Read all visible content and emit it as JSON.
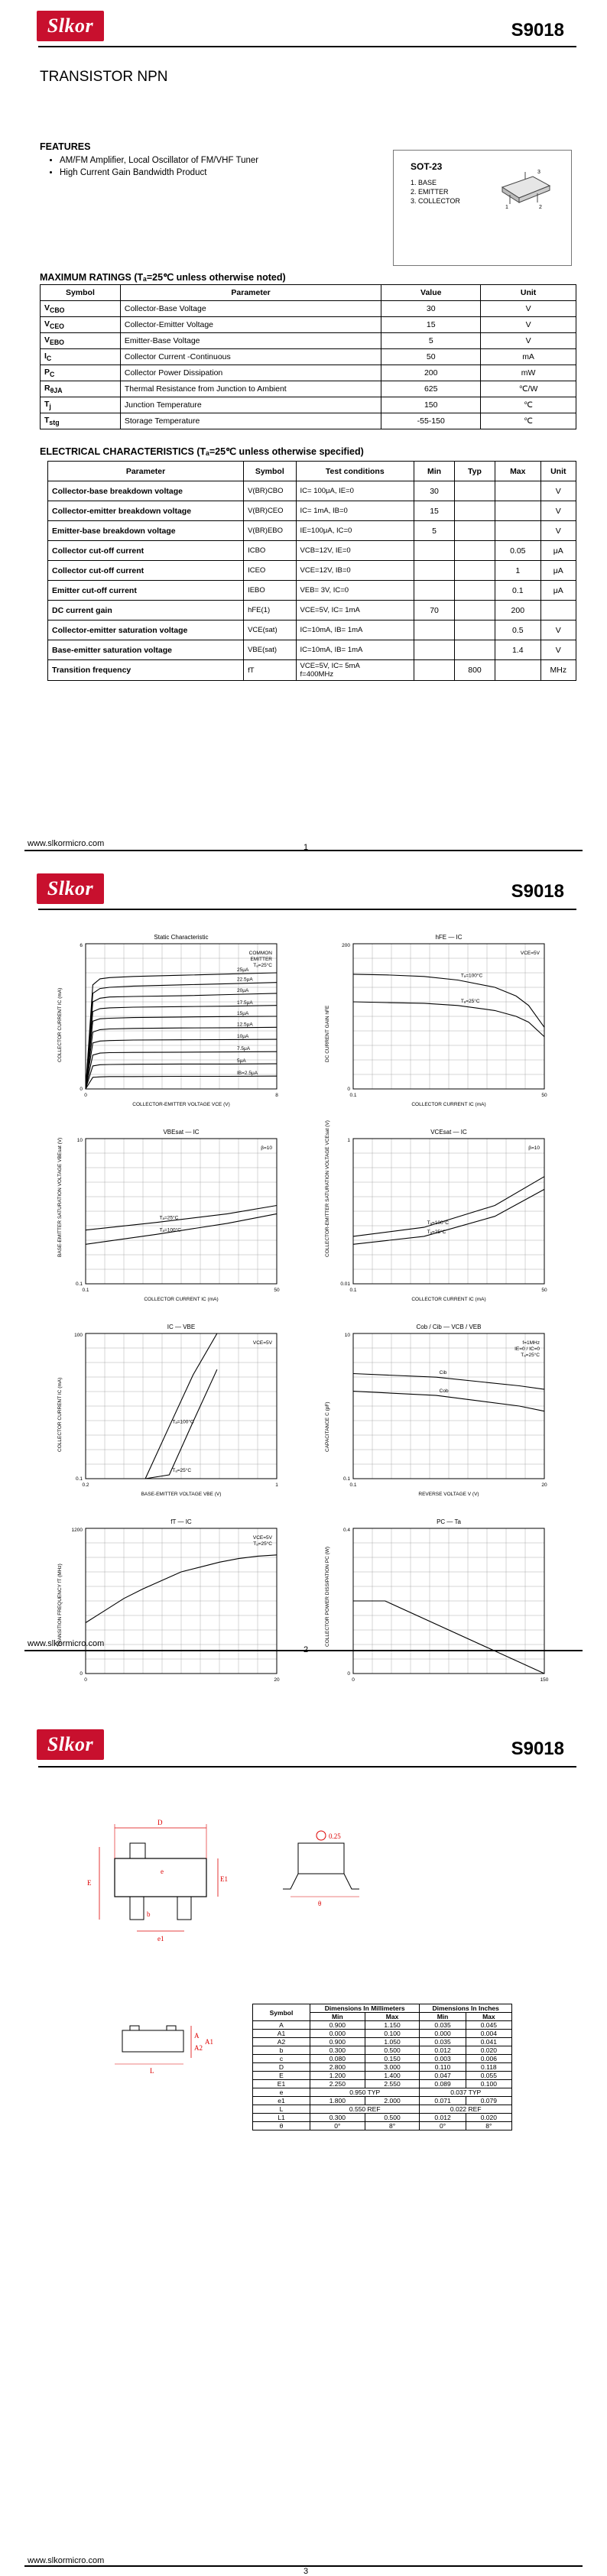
{
  "brand": "Slkor",
  "part_number": "S9018",
  "page1": {
    "title": "TRANSISTOR NPN",
    "features_heading": "FEATURES",
    "features": [
      "AM/FM Amplifier, Local Oscillator of FM/VHF Tuner",
      "High Current Gain Bandwidth Product"
    ],
    "package": {
      "name": "SOT-23",
      "pins": [
        "1. BASE",
        "2. EMITTER",
        "3. COLLECTOR"
      ]
    },
    "max_heading": "MAXIMUM RATINGS (Tₐ=25℃ unless otherwise noted)",
    "max_headers": [
      "Symbol",
      "Parameter",
      "Value",
      "Unit"
    ],
    "max_rows": [
      {
        "sym": "V",
        "sub": "CBO",
        "param": "Collector-Base Voltage",
        "value": "30",
        "unit": "V"
      },
      {
        "sym": "V",
        "sub": "CEO",
        "param": "Collector-Emitter Voltage",
        "value": "15",
        "unit": "V"
      },
      {
        "sym": "V",
        "sub": "EBO",
        "param": "Emitter-Base Voltage",
        "value": "5",
        "unit": "V"
      },
      {
        "sym": "I",
        "sub": "C",
        "param": "Collector Current -Continuous",
        "value": "50",
        "unit": "mA"
      },
      {
        "sym": "P",
        "sub": "C",
        "param": "Collector Power Dissipation",
        "value": "200",
        "unit": "mW"
      },
      {
        "sym": "R",
        "sub": "θJA",
        "param": "Thermal Resistance from Junction to Ambient",
        "value": "625",
        "unit": "℃/W"
      },
      {
        "sym": "T",
        "sub": "j",
        "param": "Junction Temperature",
        "value": "150",
        "unit": "℃"
      },
      {
        "sym": "T",
        "sub": "stg",
        "param": "Storage Temperature",
        "value": "-55-150",
        "unit": "℃"
      }
    ],
    "elec_heading": "ELECTRICAL CHARACTERISTICS (Tₐ=25℃ unless otherwise specified)",
    "elec_headers": [
      "Parameter",
      "Symbol",
      "Test  conditions",
      "Min",
      "Typ",
      "Max",
      "Unit"
    ],
    "elec_rows": [
      {
        "param": "Collector-base breakdown voltage",
        "sym": "V(BR)CBO",
        "cond": "IC= 100μA, IE=0",
        "min": "30",
        "typ": "",
        "max": "",
        "unit": "V"
      },
      {
        "param": "Collector-emitter breakdown voltage",
        "sym": "V(BR)CEO",
        "cond": "IC= 1mA, IB=0",
        "min": "15",
        "typ": "",
        "max": "",
        "unit": "V"
      },
      {
        "param": "Emitter-base breakdown voltage",
        "sym": "V(BR)EBO",
        "cond": "IE=100μA, IC=0",
        "min": "5",
        "typ": "",
        "max": "",
        "unit": "V"
      },
      {
        "param": "Collector cut-off current",
        "sym": "ICBO",
        "cond": "VCB=12V, IE=0",
        "min": "",
        "typ": "",
        "max": "0.05",
        "unit": "μA"
      },
      {
        "param": "Collector cut-off current",
        "sym": "ICEO",
        "cond": "VCE=12V, IB=0",
        "min": "",
        "typ": "",
        "max": "1",
        "unit": "μA"
      },
      {
        "param": "Emitter cut-off current",
        "sym": "IEBO",
        "cond": "VEB= 3V, IC=0",
        "min": "",
        "typ": "",
        "max": "0.1",
        "unit": "μA"
      },
      {
        "param": "DC current gain",
        "sym": "hFE(1)",
        "cond": "VCE=5V, IC= 1mA",
        "min": "70",
        "typ": "",
        "max": "200",
        "unit": ""
      },
      {
        "param": "Collector-emitter saturation voltage",
        "sym": "VCE(sat)",
        "cond": "IC=10mA, IB= 1mA",
        "min": "",
        "typ": "",
        "max": "0.5",
        "unit": "V"
      },
      {
        "param": "Base-emitter saturation voltage",
        "sym": "VBE(sat)",
        "cond": "IC=10mA, IB= 1mA",
        "min": "",
        "typ": "",
        "max": "1.4",
        "unit": "V"
      },
      {
        "param": "Transition frequency",
        "sym": "fT",
        "cond": "VCE=5V, IC= 5mA\nf=400MHz",
        "min": "",
        "typ": "800",
        "max": "",
        "unit": "MHz"
      }
    ],
    "footer_url": "www.slkormicro.com",
    "page_no": "1"
  },
  "page2": {
    "graph_titles": [
      "Static Characteristic",
      "hFE — IC",
      "VBEsat — IC",
      "VCEsat — IC",
      "IC — VBE",
      "Cob / Cib — VCB / VEB",
      "fT — IC",
      "PC — Ta"
    ],
    "static_legend": [
      "COMMON",
      "EMITTER",
      "Tₐ=25°C"
    ],
    "static_curves": [
      "25μA",
      "22.5μA",
      "20μA",
      "17.5μA",
      "15μA",
      "12.5μA",
      "10μA",
      "7.5μA",
      "5μA",
      "IB=2.5μA"
    ],
    "static_x_label": "COLLECTOR-EMITTER VOLTAGE  VCE (V)",
    "static_y_label": "COLLECTOR CURRENT  IC (mA)",
    "hfe_note": "VCE=5V",
    "hfe_curves": [
      "Tₐ=100°C",
      "Tₐ=25°C"
    ],
    "hfe_x_label": "COLLECTOR CURRENT  IC (mA)",
    "hfe_y_label": "DC CURRENT GAIN  hFE",
    "vbe_note": "β=10",
    "vbe_curves": [
      "Tₐ=25°C",
      "Tₐ=100°C"
    ],
    "vbe_x_label": "COLLECTOR CURRENT  IC (mA)",
    "vbe_y_label": "BASE-EMITTER SATURATION VOLTAGE  VBEsat (V)",
    "vce_note": "β=10",
    "vce_curves": [
      "Tₐ=100°C",
      "Tₐ=25°C"
    ],
    "vce_x_label": "COLLECTOR CURRENT  IC (mA)",
    "vce_y_label": "COLLECTOR-EMITTER SATURATION VOLTAGE  VCEsat (V)",
    "ic_note": "VCE=5V",
    "ic_curves": [
      "Tₐ=100°C",
      "Tₐ=25°C"
    ],
    "ic_x_label": "BASE-EMITTER VOLTAGE  VBE (V)",
    "ic_y_label": "COLLECTOR CURRENT  IC (mA)",
    "cob_note": [
      "f=1MHz",
      "IE=0 / IC=0",
      "Tₐ=25°C"
    ],
    "cob_curves": [
      "Cib",
      "Cob"
    ],
    "cob_x_label": "REVERSE VOLTAGE  V  (V)",
    "cob_y_label": "CAPACITANCE  C  (pF)",
    "ft_note": [
      "VCE=5V",
      "Tₐ=25°C"
    ],
    "ft_x_label": "COLLECTOR CURRENT  IC (mA)",
    "ft_y_label": "TRANSITION FREQUENCY  fT (MHz)",
    "pc_x_label": "AMBIENT TEMPERATURE  Ta (°C)",
    "pc_y_label": "COLLECTOR POWER DISSIPATION  PC (W)",
    "footer_url": "www.slkormicro.com",
    "page_no": "2"
  },
  "page3": {
    "dim_headers": [
      "Symbol",
      "Dimensions In Millimeters",
      "Dimensions In Inches"
    ],
    "dim_sub": [
      "Min",
      "Max",
      "Min",
      "Max"
    ],
    "dim_rows": [
      [
        "A",
        "0.900",
        "1.150",
        "0.035",
        "0.045"
      ],
      [
        "A1",
        "0.000",
        "0.100",
        "0.000",
        "0.004"
      ],
      [
        "A2",
        "0.900",
        "1.050",
        "0.035",
        "0.041"
      ],
      [
        "b",
        "0.300",
        "0.500",
        "0.012",
        "0.020"
      ],
      [
        "c",
        "0.080",
        "0.150",
        "0.003",
        "0.006"
      ],
      [
        "D",
        "2.800",
        "3.000",
        "0.110",
        "0.118"
      ],
      [
        "E",
        "1.200",
        "1.400",
        "0.047",
        "0.055"
      ],
      [
        "E1",
        "2.250",
        "2.550",
        "0.089",
        "0.100"
      ],
      [
        "e",
        "0.950 TYP",
        "",
        "0.037 TYP",
        ""
      ],
      [
        "e1",
        "1.800",
        "2.000",
        "0.071",
        "0.079"
      ],
      [
        "L",
        "0.550 REF",
        "",
        "0.022 REF",
        ""
      ],
      [
        "L1",
        "0.300",
        "0.500",
        "0.012",
        "0.020"
      ],
      [
        "θ",
        "0°",
        "8°",
        "0°",
        "8°"
      ]
    ],
    "pkg_labels": [
      "D",
      "b",
      "e",
      "e1",
      "E1",
      "E",
      "θ",
      "0.25",
      "A",
      "A1",
      "A2",
      "c",
      "L",
      "L1"
    ],
    "footer_url": "www.slkormicro.com",
    "page_no": "3"
  },
  "chart_data": [
    {
      "type": "line",
      "title": "Static Characteristic",
      "xlabel": "COLLECTOR-EMITTER VOLTAGE  VCE (V)",
      "ylabel": "COLLECTOR CURRENT  IC (mA)",
      "xlim": [
        0,
        8
      ],
      "ylim": [
        0,
        6
      ],
      "x": [
        0,
        0.3,
        0.6,
        1,
        2,
        4,
        6,
        8
      ],
      "series": [
        {
          "name": "25μA",
          "values": [
            0,
            4.3,
            4.55,
            4.6,
            4.65,
            4.7,
            4.75,
            4.8
          ]
        },
        {
          "name": "22.5μA",
          "values": [
            0,
            3.95,
            4.15,
            4.2,
            4.25,
            4.3,
            4.35,
            4.4
          ]
        },
        {
          "name": "20μA",
          "values": [
            0,
            3.6,
            3.75,
            3.8,
            3.82,
            3.85,
            3.9,
            3.95
          ]
        },
        {
          "name": "17.5μA",
          "values": [
            0,
            3.2,
            3.32,
            3.35,
            3.38,
            3.4,
            3.42,
            3.45
          ]
        },
        {
          "name": "15μA",
          "values": [
            0,
            2.8,
            2.9,
            2.92,
            2.95,
            2.97,
            2.99,
            3.0
          ]
        },
        {
          "name": "12.5μA",
          "values": [
            0,
            2.35,
            2.45,
            2.48,
            2.5,
            2.52,
            2.53,
            2.55
          ]
        },
        {
          "name": "10μA",
          "values": [
            0,
            1.9,
            1.98,
            2.0,
            2.02,
            2.03,
            2.04,
            2.05
          ]
        },
        {
          "name": "7.5μA",
          "values": [
            0,
            1.4,
            1.48,
            1.5,
            1.51,
            1.52,
            1.53,
            1.54
          ]
        },
        {
          "name": "5μA",
          "values": [
            0,
            0.95,
            1.0,
            1.01,
            1.02,
            1.03,
            1.03,
            1.04
          ]
        },
        {
          "name": "IB=2.5μA",
          "values": [
            0,
            0.48,
            0.5,
            0.51,
            0.51,
            0.52,
            0.52,
            0.53
          ]
        }
      ]
    },
    {
      "type": "line",
      "title": "hFE — IC",
      "xlabel": "COLLECTOR CURRENT  IC (mA)",
      "ylabel": "DC CURRENT GAIN  hFE",
      "xlim": [
        0.1,
        50
      ],
      "ylim": [
        0,
        200
      ],
      "log_x": true,
      "x": [
        0.1,
        0.3,
        1,
        3,
        10,
        20,
        30,
        50
      ],
      "series": [
        {
          "name": "Tₐ=100°C",
          "values": [
            158,
            157,
            155,
            150,
            140,
            128,
            115,
            85
          ]
        },
        {
          "name": "Tₐ=25°C",
          "values": [
            120,
            119,
            118,
            115,
            108,
            100,
            92,
            72
          ]
        }
      ]
    },
    {
      "type": "line",
      "title": "VBEsat — IC",
      "xlabel": "COLLECTOR CURRENT  IC (mA)",
      "ylabel": "VBEsat (V)",
      "xlim": [
        0.1,
        50
      ],
      "ylim": [
        0.1,
        10
      ],
      "log_x": true,
      "log_y": true,
      "x": [
        0.1,
        1,
        10,
        50
      ],
      "series": [
        {
          "name": "Tₐ=25°C",
          "values": [
            0.55,
            0.7,
            0.92,
            1.2
          ]
        },
        {
          "name": "Tₐ=100°C",
          "values": [
            0.35,
            0.48,
            0.68,
            0.92
          ]
        }
      ]
    },
    {
      "type": "line",
      "title": "VCEsat — IC",
      "xlabel": "COLLECTOR CURRENT  IC (mA)",
      "ylabel": "VCEsat (V)",
      "xlim": [
        0.1,
        50
      ],
      "ylim": [
        0.01,
        1
      ],
      "log_x": true,
      "log_y": true,
      "x": [
        0.1,
        1,
        10,
        50
      ],
      "series": [
        {
          "name": "Tₐ=100°C",
          "values": [
            0.045,
            0.06,
            0.12,
            0.3
          ]
        },
        {
          "name": "Tₐ=25°C",
          "values": [
            0.035,
            0.045,
            0.085,
            0.2
          ]
        }
      ]
    },
    {
      "type": "line",
      "title": "IC — VBE",
      "xlabel": "BASE-EMITTER VOLTAGE  VBE (V)",
      "ylabel": "COLLECTOR CURRENT  IC (mA)",
      "xlim": [
        0.2,
        1.0
      ],
      "ylim": [
        0.1,
        100
      ],
      "log_y": true,
      "x": [
        0.45,
        0.55,
        0.65,
        0.75
      ],
      "series": [
        {
          "name": "Tₐ=100°C",
          "values": [
            0.1,
            1.2,
            14,
            100
          ]
        },
        {
          "name": "Tₐ=25°C",
          "values": [
            0.1,
            0.12,
            1.5,
            18
          ]
        }
      ]
    },
    {
      "type": "line",
      "title": "Cob / Cib — VCB / VEB",
      "xlabel": "REVERSE VOLTAGE  V  (V)",
      "ylabel": "CAPACITANCE  C  (pF)",
      "xlim": [
        0.1,
        20
      ],
      "ylim": [
        0.1,
        10
      ],
      "log_x": true,
      "log_y": true,
      "x": [
        0.1,
        1,
        10,
        20
      ],
      "series": [
        {
          "name": "Cib",
          "values": [
            2.8,
            2.5,
            1.9,
            1.7
          ]
        },
        {
          "name": "Cob",
          "values": [
            1.6,
            1.4,
            1.0,
            0.85
          ]
        }
      ]
    },
    {
      "type": "line",
      "title": "fT — IC",
      "xlabel": "COLLECTOR CURRENT  IC (mA)",
      "ylabel": "TRANSITION FREQUENCY  fT (MHz)",
      "xlim": [
        0,
        20
      ],
      "ylim": [
        0,
        1200
      ],
      "x": [
        0,
        2,
        4,
        6,
        8,
        10,
        12,
        14,
        16,
        18,
        20
      ],
      "series": [
        {
          "name": "fT",
          "values": [
            420,
            520,
            620,
            700,
            770,
            840,
            880,
            920,
            950,
            970,
            980
          ]
        }
      ]
    },
    {
      "type": "line",
      "title": "PC — Ta",
      "xlabel": "AMBIENT TEMPERATURE  Ta (°C)",
      "ylabel": "COLLECTOR POWER DISSIPATION  PC (W)",
      "xlim": [
        0,
        150
      ],
      "ylim": [
        0,
        0.4
      ],
      "x": [
        0,
        25,
        150
      ],
      "series": [
        {
          "name": "PC",
          "values": [
            0.2,
            0.2,
            0.0
          ]
        }
      ]
    }
  ]
}
